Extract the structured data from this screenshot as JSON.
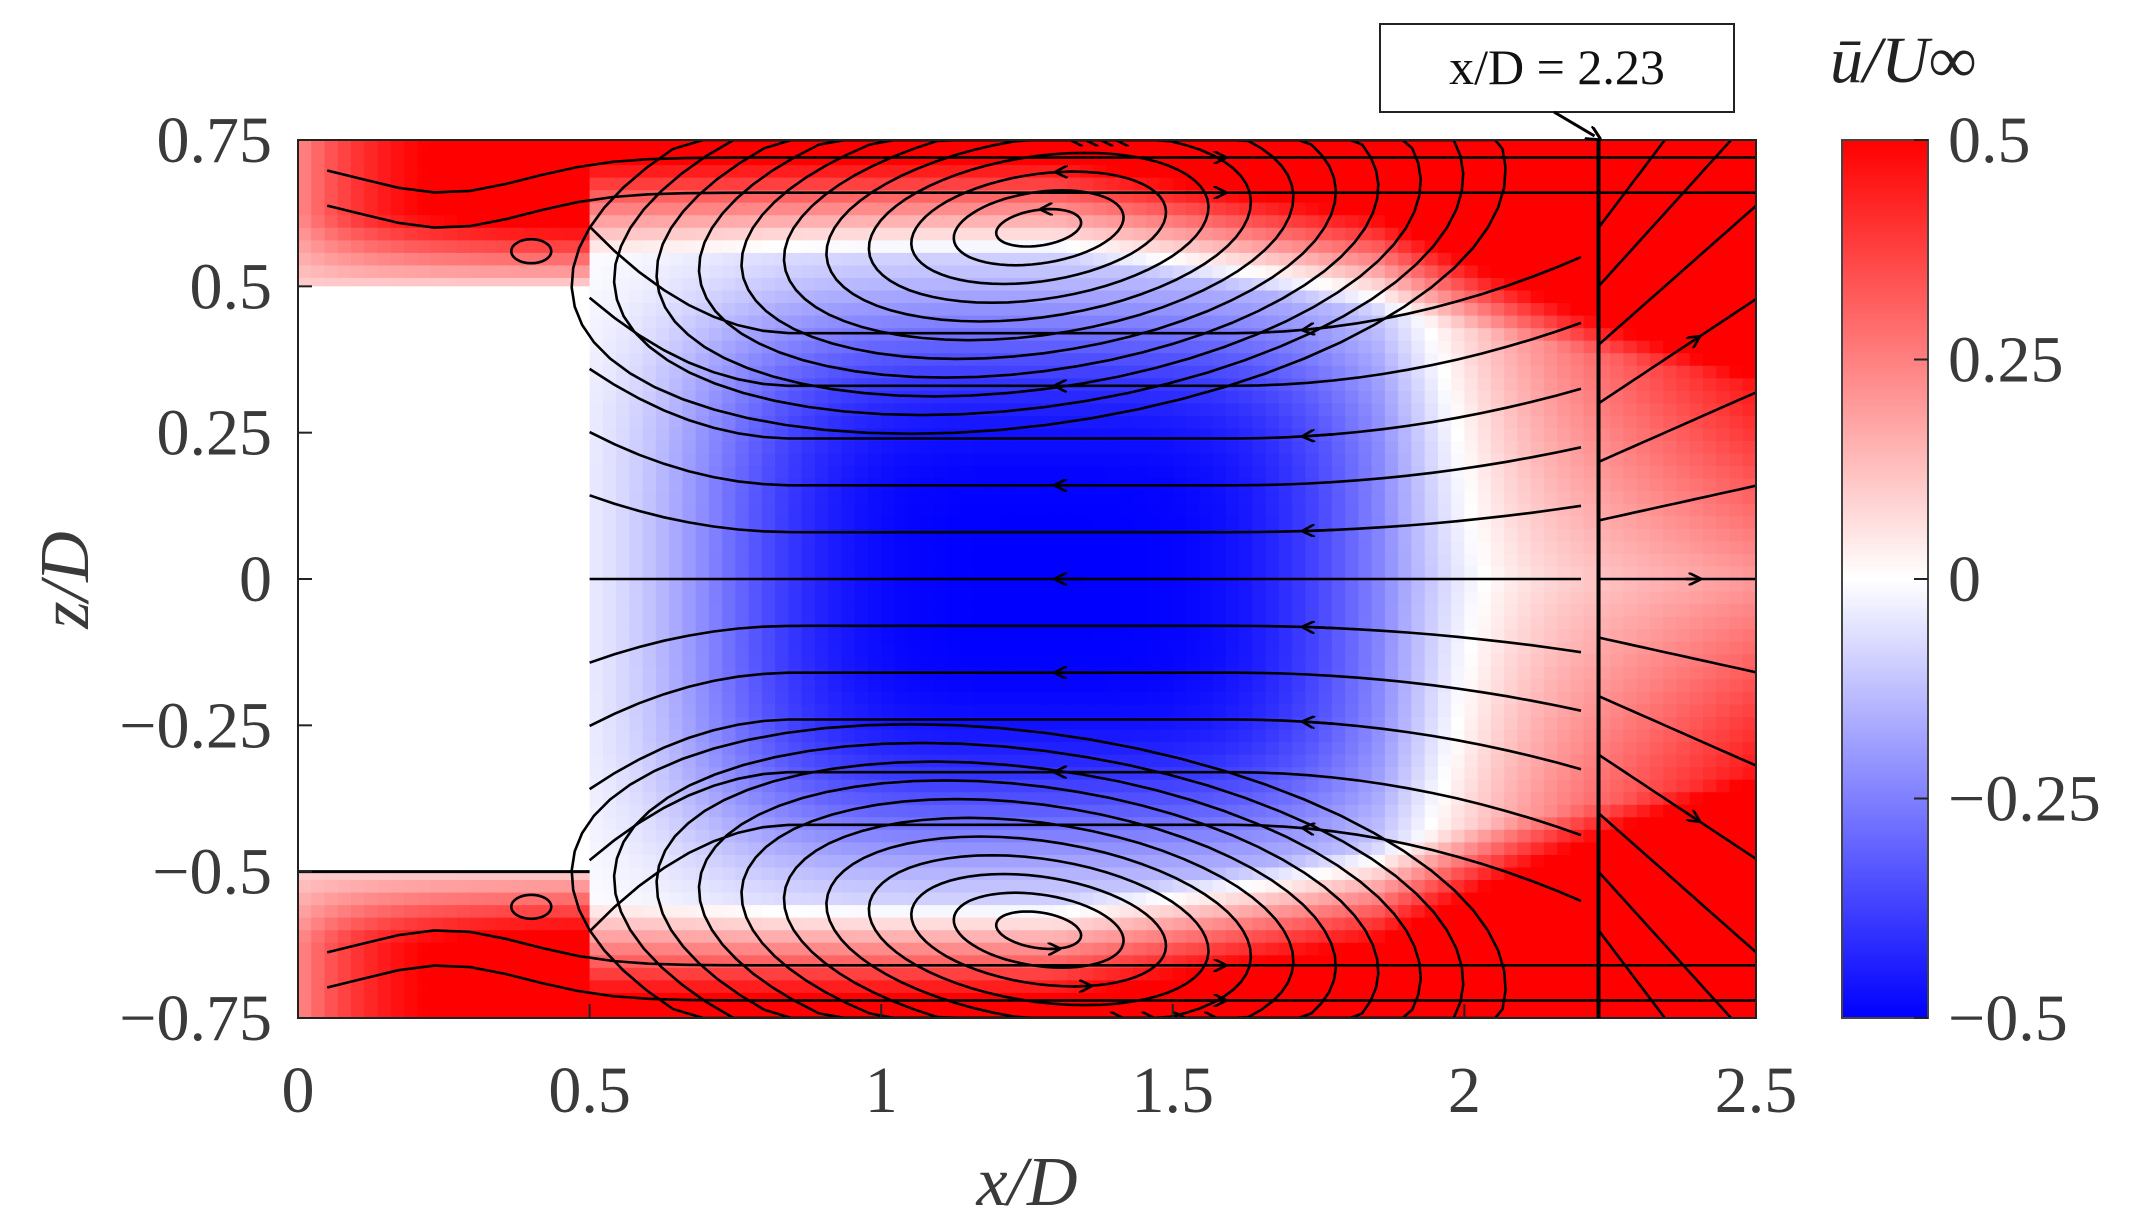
{
  "chart_data": {
    "type": "heatmap",
    "subtype": "contour with streamlines",
    "xlabel": "x/D",
    "ylabel": "z/D",
    "xlim": [
      0,
      2.5
    ],
    "ylim": [
      -0.75,
      0.75
    ],
    "xticks": [
      "0",
      "0.5",
      "1",
      "1.5",
      "2",
      "2.5"
    ],
    "yticks": [
      "0.75",
      "0.5",
      "0.25",
      "0",
      "−0.25",
      "−0.5",
      "−0.75"
    ],
    "colorbar": {
      "title": "ū/U∞",
      "range": [
        -0.5,
        0.5
      ],
      "ticks": [
        "0.5",
        "0.25",
        "0",
        "−0.25",
        "−0.5"
      ],
      "colormap": [
        "#0000ff",
        "#ffffff",
        "#ff0000"
      ]
    },
    "annotation": {
      "text": "x/D = 2.23",
      "x": 2.23
    },
    "body_region": {
      "x": [
        0,
        0.5
      ],
      "z": [
        -0.5,
        0.5
      ]
    },
    "features": {
      "vortex_centers": [
        {
          "x": 1.27,
          "z": 0.6
        },
        {
          "x": 1.27,
          "z": -0.6
        },
        {
          "x": 0.4,
          "z": 0.56
        },
        {
          "x": 0.4,
          "z": -0.56
        }
      ],
      "min_velocity": -0.5,
      "reversed_flow_core": {
        "x": [
          0.5,
          2.2
        ],
        "z": [
          -0.45,
          0.45
        ]
      }
    }
  }
}
